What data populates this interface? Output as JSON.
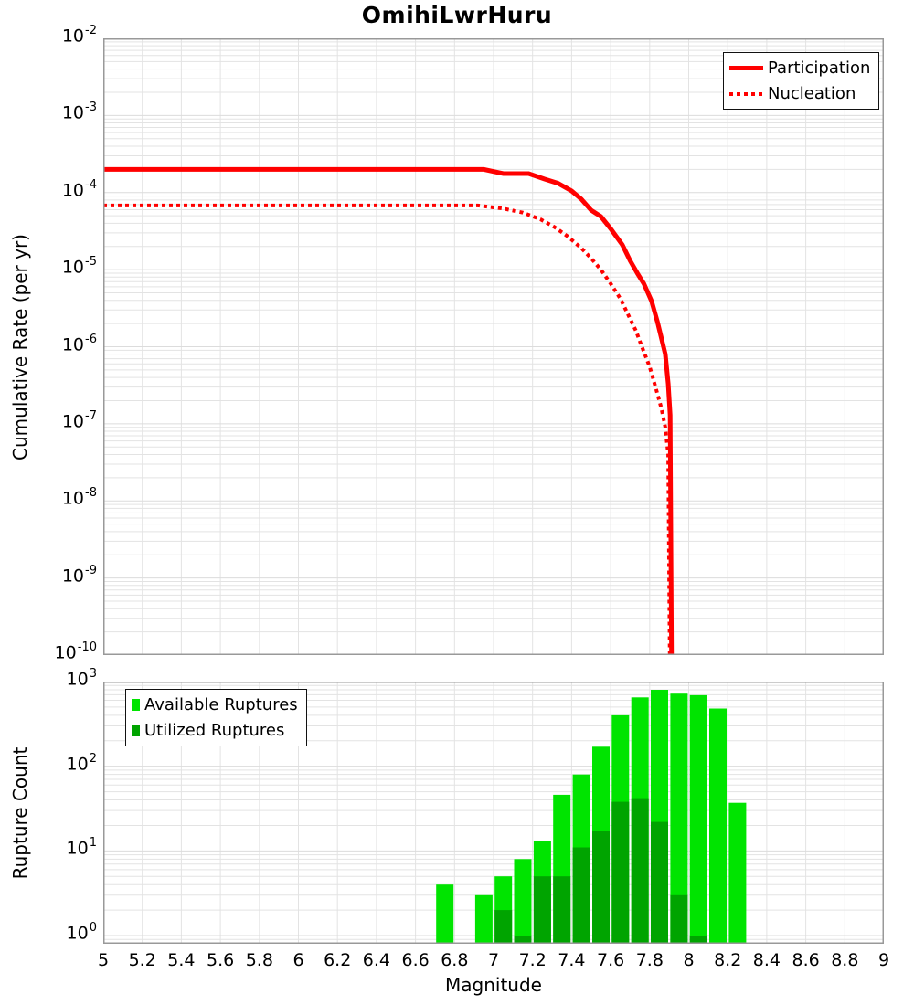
{
  "title": "OmihiLwrHuru",
  "colors": {
    "participation": "#ff0000",
    "nucleation": "#ff0000",
    "available": "#00e400",
    "utilized": "#00a400",
    "grid": "#e3e3e3",
    "border": "#999999"
  },
  "axes": {
    "x": {
      "label": "Magnitude",
      "min": 5,
      "max": 9,
      "tick_labels": [
        "5",
        "5.2",
        "5.4",
        "5.6",
        "5.8",
        "6",
        "6.2",
        "6.4",
        "6.6",
        "6.8",
        "7",
        "7.2",
        "7.4",
        "7.6",
        "7.8",
        "8",
        "8.2",
        "8.4",
        "8.6",
        "8.8",
        "9"
      ]
    },
    "top_y": {
      "label": "Cumulative Rate (per yr)",
      "tick_mantissa": "10",
      "tick_exponents": [
        "-2",
        "-3",
        "-4",
        "-5",
        "-6",
        "-7",
        "-8",
        "-9",
        "-10"
      ],
      "log_min": -10,
      "log_max": -2
    },
    "bottom_y": {
      "label": "Rupture Count",
      "tick_mantissa": "10",
      "tick_exponents": [
        "3",
        "2",
        "1",
        "0"
      ],
      "log_min": 0,
      "log_max": 3
    }
  },
  "legend_top": [
    {
      "label": "Participation",
      "style": "solid"
    },
    {
      "label": "Nucleation",
      "style": "dotted"
    }
  ],
  "legend_bottom": [
    {
      "label": "Available Ruptures",
      "swatch": "available"
    },
    {
      "label": "Utilized Ruptures",
      "swatch": "utilized"
    }
  ],
  "chart_data": [
    {
      "type": "line",
      "title": "OmihiLwrHuru",
      "xlabel": "Magnitude",
      "ylabel": "Cumulative Rate (per yr)",
      "xlim": [
        5,
        9
      ],
      "ylim": [
        1e-10,
        0.01
      ],
      "grid": true,
      "legend_position": "top-right",
      "series": [
        {
          "name": "Participation",
          "style": "solid",
          "color": "#ff0000",
          "points": [
            [
              5.0,
              0.0002
            ],
            [
              6.95,
              0.0002
            ],
            [
              7.05,
              0.000176
            ],
            [
              7.18,
              0.000176
            ],
            [
              7.26,
              0.00015
            ],
            [
              7.33,
              0.000132
            ],
            [
              7.4,
              0.000105
            ],
            [
              7.45,
              8.2e-05
            ],
            [
              7.5,
              5.9e-05
            ],
            [
              7.55,
              4.9e-05
            ],
            [
              7.6,
              3.4e-05
            ],
            [
              7.66,
              2.1e-05
            ],
            [
              7.7,
              1.3e-05
            ],
            [
              7.74,
              8.7e-06
            ],
            [
              7.77,
              6.6e-06
            ],
            [
              7.81,
              3.9e-06
            ],
            [
              7.84,
              2.1e-06
            ],
            [
              7.86,
              1.3e-06
            ],
            [
              7.88,
              8e-07
            ],
            [
              7.895,
              3.3e-07
            ],
            [
              7.905,
              1.3e-07
            ],
            [
              7.912,
              1e-10
            ]
          ]
        },
        {
          "name": "Nucleation",
          "style": "dotted",
          "color": "#ff0000",
          "points": [
            [
              5.0,
              6.8e-05
            ],
            [
              6.92,
              6.8e-05
            ],
            [
              7.05,
              6.2e-05
            ],
            [
              7.15,
              5.5e-05
            ],
            [
              7.24,
              4.5e-05
            ],
            [
              7.31,
              3.6e-05
            ],
            [
              7.38,
              2.7e-05
            ],
            [
              7.45,
              1.9e-05
            ],
            [
              7.5,
              1.4e-05
            ],
            [
              7.55,
              1e-05
            ],
            [
              7.6,
              6.6e-06
            ],
            [
              7.65,
              4.2e-06
            ],
            [
              7.69,
              2.6e-06
            ],
            [
              7.73,
              1.6e-06
            ],
            [
              7.76,
              1e-06
            ],
            [
              7.8,
              5.5e-07
            ],
            [
              7.83,
              3e-07
            ],
            [
              7.86,
              1.6e-07
            ],
            [
              7.88,
              9e-08
            ],
            [
              7.895,
              4e-08
            ],
            [
              7.903,
              1e-10
            ]
          ]
        }
      ]
    },
    {
      "type": "bar",
      "xlabel": "Magnitude",
      "ylabel": "Rupture Count",
      "xlim": [
        5,
        9
      ],
      "ylim": [
        1,
        1000
      ],
      "bin_width": 0.1,
      "grid": true,
      "legend_position": "top-left",
      "series": [
        {
          "name": "Available Ruptures",
          "color_key": "available",
          "bars": [
            [
              6.7,
              4
            ],
            [
              6.9,
              3
            ],
            [
              7.0,
              5
            ],
            [
              7.1,
              8
            ],
            [
              7.2,
              13
            ],
            [
              7.3,
              46
            ],
            [
              7.4,
              80
            ],
            [
              7.5,
              170
            ],
            [
              7.6,
              400
            ],
            [
              7.7,
              650
            ],
            [
              7.8,
              800
            ],
            [
              7.9,
              720
            ],
            [
              8.0,
              690
            ],
            [
              8.1,
              480
            ],
            [
              8.2,
              37
            ]
          ]
        },
        {
          "name": "Utilized Ruptures",
          "color_key": "utilized",
          "bars": [
            [
              7.0,
              2
            ],
            [
              7.1,
              1
            ],
            [
              7.2,
              5
            ],
            [
              7.3,
              5
            ],
            [
              7.4,
              11
            ],
            [
              7.5,
              17
            ],
            [
              7.6,
              38
            ],
            [
              7.7,
              42
            ],
            [
              7.8,
              22
            ],
            [
              7.9,
              3
            ],
            [
              8.0,
              1
            ]
          ]
        }
      ]
    }
  ]
}
